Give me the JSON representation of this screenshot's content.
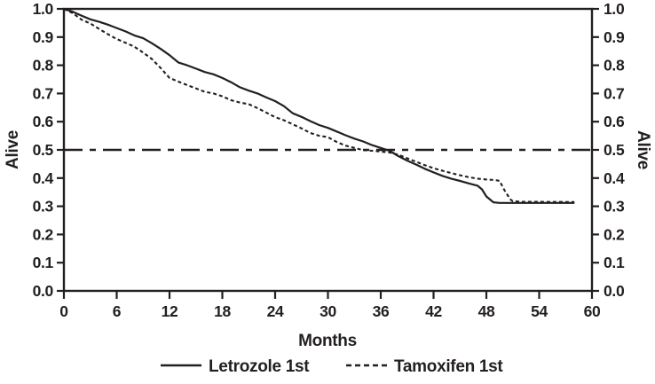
{
  "chart_data": {
    "type": "line",
    "title": "",
    "xlabel": "Months",
    "ylabel_left": "Alive",
    "ylabel_right": "Alive",
    "xlim": [
      0,
      60
    ],
    "ylim": [
      0.0,
      1.0
    ],
    "x_ticks": [
      0,
      6,
      12,
      18,
      24,
      30,
      36,
      42,
      48,
      54,
      60
    ],
    "y_ticks": [
      0.0,
      0.1,
      0.2,
      0.3,
      0.4,
      0.5,
      0.6,
      0.7,
      0.8,
      0.9,
      1.0
    ],
    "grid": false,
    "frame": "box",
    "legend_position": "bottom",
    "reference_line": {
      "y": 0.5,
      "style": "dash-dot"
    },
    "series": [
      {
        "name": "Letrozole 1st",
        "style": "solid",
        "points": [
          [
            0,
            1.0
          ],
          [
            1,
            0.99
          ],
          [
            2,
            0.976
          ],
          [
            3,
            0.963
          ],
          [
            4,
            0.954
          ],
          [
            5,
            0.944
          ],
          [
            6,
            0.932
          ],
          [
            7,
            0.92
          ],
          [
            8,
            0.906
          ],
          [
            9,
            0.896
          ],
          [
            10,
            0.878
          ],
          [
            11,
            0.858
          ],
          [
            12,
            0.836
          ],
          [
            13,
            0.81
          ],
          [
            14,
            0.8
          ],
          [
            15,
            0.788
          ],
          [
            16,
            0.776
          ],
          [
            17,
            0.768
          ],
          [
            18,
            0.755
          ],
          [
            19,
            0.74
          ],
          [
            20,
            0.722
          ],
          [
            21,
            0.71
          ],
          [
            22,
            0.7
          ],
          [
            23,
            0.686
          ],
          [
            24,
            0.673
          ],
          [
            25,
            0.655
          ],
          [
            26,
            0.63
          ],
          [
            27,
            0.617
          ],
          [
            28,
            0.602
          ],
          [
            29,
            0.588
          ],
          [
            30,
            0.578
          ],
          [
            31,
            0.565
          ],
          [
            32,
            0.552
          ],
          [
            33,
            0.54
          ],
          [
            34,
            0.53
          ],
          [
            35,
            0.517
          ],
          [
            36,
            0.507
          ],
          [
            37,
            0.497
          ],
          [
            38,
            0.478
          ],
          [
            39,
            0.462
          ],
          [
            40,
            0.448
          ],
          [
            41,
            0.433
          ],
          [
            42,
            0.42
          ],
          [
            43,
            0.408
          ],
          [
            44,
            0.398
          ],
          [
            45,
            0.39
          ],
          [
            46,
            0.381
          ],
          [
            47,
            0.373
          ],
          [
            47.5,
            0.36
          ],
          [
            48,
            0.335
          ],
          [
            48.8,
            0.314
          ],
          [
            49.5,
            0.312
          ],
          [
            58,
            0.312
          ]
        ]
      },
      {
        "name": "Tamoxifen 1st",
        "style": "dashed",
        "points": [
          [
            0,
            1.0
          ],
          [
            1,
            0.985
          ],
          [
            2,
            0.962
          ],
          [
            3,
            0.948
          ],
          [
            4,
            0.929
          ],
          [
            5,
            0.91
          ],
          [
            6,
            0.893
          ],
          [
            7,
            0.88
          ],
          [
            8,
            0.866
          ],
          [
            9,
            0.845
          ],
          [
            10,
            0.822
          ],
          [
            11,
            0.79
          ],
          [
            12,
            0.755
          ],
          [
            13,
            0.742
          ],
          [
            14,
            0.73
          ],
          [
            15,
            0.718
          ],
          [
            16,
            0.706
          ],
          [
            17,
            0.7
          ],
          [
            18,
            0.69
          ],
          [
            19,
            0.676
          ],
          [
            20,
            0.668
          ],
          [
            21,
            0.662
          ],
          [
            22,
            0.648
          ],
          [
            23,
            0.632
          ],
          [
            24,
            0.616
          ],
          [
            25,
            0.605
          ],
          [
            26,
            0.591
          ],
          [
            27,
            0.576
          ],
          [
            28,
            0.56
          ],
          [
            29,
            0.55
          ],
          [
            30,
            0.545
          ],
          [
            31,
            0.528
          ],
          [
            32,
            0.515
          ],
          [
            33,
            0.507
          ],
          [
            34,
            0.499
          ],
          [
            35,
            0.497
          ],
          [
            36,
            0.494
          ],
          [
            37,
            0.491
          ],
          [
            38,
            0.483
          ],
          [
            39,
            0.47
          ],
          [
            40,
            0.458
          ],
          [
            41,
            0.446
          ],
          [
            42,
            0.435
          ],
          [
            43,
            0.426
          ],
          [
            44,
            0.418
          ],
          [
            45,
            0.41
          ],
          [
            46,
            0.403
          ],
          [
            47,
            0.398
          ],
          [
            48,
            0.395
          ],
          [
            49,
            0.393
          ],
          [
            49.5,
            0.39
          ],
          [
            50,
            0.36
          ],
          [
            50.7,
            0.325
          ],
          [
            51,
            0.318
          ],
          [
            52,
            0.316
          ],
          [
            58,
            0.315
          ]
        ]
      }
    ]
  },
  "legend": {
    "items": [
      {
        "label": "Letrozole 1st",
        "style": "solid"
      },
      {
        "label": "Tamoxifen 1st",
        "style": "dashed"
      }
    ]
  },
  "colors": {
    "line": "#231f20",
    "text": "#231f20",
    "background": "#ffffff"
  }
}
